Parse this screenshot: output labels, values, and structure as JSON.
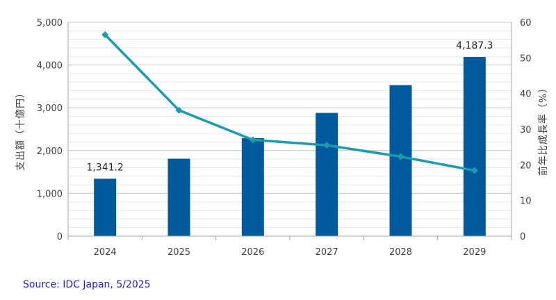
{
  "chart_data": {
    "type": "bar",
    "categories": [
      "2024",
      "2025",
      "2026",
      "2027",
      "2028",
      "2029"
    ],
    "series": [
      {
        "type": "bar",
        "axis": "left",
        "values": [
          1341.2,
          1810,
          2290,
          2880,
          3530,
          4187.3
        ],
        "color": "#005a9c"
      },
      {
        "type": "line",
        "axis": "right",
        "values": [
          56.5,
          35.3,
          27.0,
          25.5,
          22.3,
          18.4
        ],
        "color": "#1a9bb0"
      }
    ],
    "data_labels": [
      {
        "series": 0,
        "index": 0,
        "text": "1,341.2"
      },
      {
        "series": 0,
        "index": 5,
        "text": "4,187.3"
      }
    ],
    "ylabel": "支出額（十億円）",
    "y2label": "前年比成長率（%）",
    "ylim": [
      0,
      5000
    ],
    "y2lim": [
      0,
      60
    ],
    "yticks": [
      "0",
      "1,000",
      "2,000",
      "3,000",
      "4,000",
      "5,000"
    ],
    "y2ticks": [
      "0",
      "10",
      "20",
      "30",
      "40",
      "50",
      "60"
    ],
    "grid": true,
    "legend": "none"
  },
  "source": "Source: IDC Japan, 5/2025"
}
